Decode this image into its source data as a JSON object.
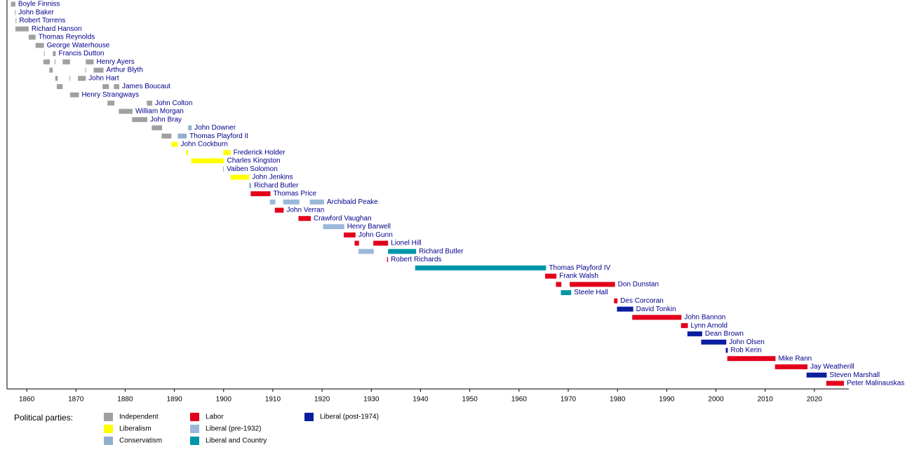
{
  "chart_data": {
    "type": "timeline",
    "xlim": [
      1856,
      2027
    ],
    "xticks": [
      1860,
      1870,
      1880,
      1890,
      1900,
      1910,
      1920,
      1930,
      1940,
      1950,
      1960,
      1970,
      1980,
      1990,
      2000,
      2010,
      2020
    ],
    "legend_title": "Political parties:",
    "parties": [
      {
        "name": "Independent",
        "color": "#a0a0a0"
      },
      {
        "name": "Liberalism",
        "color": "#ffff00"
      },
      {
        "name": "Conservatism",
        "color": "#8fb0cc"
      },
      {
        "name": "Labor",
        "color": "#e3001b"
      },
      {
        "name": "Liberal (pre-1932)",
        "color": "#9ab8d9"
      },
      {
        "name": "Liberal and Country",
        "color": "#0096aa"
      },
      {
        "name": "Liberal (post-1974)",
        "color": "#0a1e9e"
      }
    ],
    "rows": [
      {
        "name": "Boyle Finniss",
        "terms": [
          {
            "start": 1856.8,
            "end": 1857.7,
            "party": 0
          }
        ]
      },
      {
        "name": "John Baker",
        "terms": [
          {
            "start": 1857.6,
            "end": 1857.75,
            "party": 0
          }
        ]
      },
      {
        "name": "Robert Torrens",
        "terms": [
          {
            "start": 1857.75,
            "end": 1857.9,
            "party": 0
          }
        ]
      },
      {
        "name": "Richard Hanson",
        "terms": [
          {
            "start": 1857.7,
            "end": 1860.4,
            "party": 0
          }
        ]
      },
      {
        "name": "Thomas Reynolds",
        "terms": [
          {
            "start": 1860.4,
            "end": 1861.8,
            "party": 0
          }
        ]
      },
      {
        "name": "George Waterhouse",
        "terms": [
          {
            "start": 1861.8,
            "end": 1863.5,
            "party": 0
          }
        ]
      },
      {
        "name": "Francis Dutton",
        "terms": [
          {
            "start": 1863.5,
            "end": 1863.6,
            "party": 0
          },
          {
            "start": 1865.3,
            "end": 1865.9,
            "party": 0
          }
        ]
      },
      {
        "name": "Henry Ayers",
        "terms": [
          {
            "start": 1863.4,
            "end": 1864.7,
            "party": 0
          },
          {
            "start": 1865.7,
            "end": 1865.8,
            "party": 0
          },
          {
            "start": 1867.3,
            "end": 1868.8,
            "party": 0
          },
          {
            "start": 1872.0,
            "end": 1873.6,
            "party": 0
          }
        ]
      },
      {
        "name": "Arthur Blyth",
        "terms": [
          {
            "start": 1864.6,
            "end": 1865.3,
            "party": 0
          },
          {
            "start": 1871.9,
            "end": 1872.0,
            "party": 0
          },
          {
            "start": 1873.6,
            "end": 1875.6,
            "party": 0
          }
        ]
      },
      {
        "name": "John Hart",
        "terms": [
          {
            "start": 1865.8,
            "end": 1866.3,
            "party": 0
          },
          {
            "start": 1868.7,
            "end": 1868.8,
            "party": 0
          },
          {
            "start": 1870.4,
            "end": 1872.0,
            "party": 0
          }
        ]
      },
      {
        "name": "James Boucaut",
        "terms": [
          {
            "start": 1866.1,
            "end": 1867.3,
            "party": 0
          },
          {
            "start": 1875.4,
            "end": 1876.7,
            "party": 0
          },
          {
            "start": 1877.7,
            "end": 1878.8,
            "party": 0
          }
        ]
      },
      {
        "name": "Henry Strangways",
        "terms": [
          {
            "start": 1868.8,
            "end": 1870.6,
            "party": 0
          }
        ]
      },
      {
        "name": "John Colton",
        "terms": [
          {
            "start": 1876.4,
            "end": 1877.8,
            "party": 0
          },
          {
            "start": 1884.4,
            "end": 1885.5,
            "party": 0
          }
        ]
      },
      {
        "name": "William Morgan",
        "terms": [
          {
            "start": 1878.7,
            "end": 1881.5,
            "party": 0
          }
        ]
      },
      {
        "name": "John Bray",
        "terms": [
          {
            "start": 1881.4,
            "end": 1884.5,
            "party": 0
          }
        ]
      },
      {
        "name": "John Downer",
        "terms": [
          {
            "start": 1885.4,
            "end": 1887.5,
            "party": 0
          },
          {
            "start": 1892.8,
            "end": 1893.5,
            "party": 2
          }
        ]
      },
      {
        "name": "Thomas Playford II",
        "terms": [
          {
            "start": 1887.4,
            "end": 1889.4,
            "party": 0
          },
          {
            "start": 1890.7,
            "end": 1892.5,
            "party": 2
          }
        ]
      },
      {
        "name": "John Cockburn",
        "terms": [
          {
            "start": 1889.4,
            "end": 1890.7,
            "party": 1
          }
        ]
      },
      {
        "name": "Frederick Holder",
        "terms": [
          {
            "start": 1892.4,
            "end": 1892.8,
            "party": 1
          },
          {
            "start": 1899.9,
            "end": 1901.4,
            "party": 1
          }
        ]
      },
      {
        "name": "Charles Kingston",
        "terms": [
          {
            "start": 1893.4,
            "end": 1900.1,
            "party": 1
          }
        ]
      },
      {
        "name": "Vaiben Solomon",
        "terms": [
          {
            "start": 1899.9,
            "end": 1900.05,
            "party": 2
          }
        ]
      },
      {
        "name": "John Jenkins",
        "terms": [
          {
            "start": 1901.4,
            "end": 1905.2,
            "party": 1
          }
        ]
      },
      {
        "name": "Richard Butler",
        "terms": [
          {
            "start": 1905.2,
            "end": 1905.6,
            "party": 2
          }
        ]
      },
      {
        "name": "Thomas Price",
        "terms": [
          {
            "start": 1905.5,
            "end": 1909.5,
            "party": 3
          }
        ]
      },
      {
        "name": "Archibald Peake",
        "terms": [
          {
            "start": 1909.4,
            "end": 1910.5,
            "party": 4
          },
          {
            "start": 1912.1,
            "end": 1915.4,
            "party": 4
          },
          {
            "start": 1917.5,
            "end": 1920.4,
            "party": 4
          }
        ]
      },
      {
        "name": "John Verran",
        "terms": [
          {
            "start": 1910.4,
            "end": 1912.2,
            "party": 3
          }
        ]
      },
      {
        "name": "Crawford Vaughan",
        "terms": [
          {
            "start": 1915.2,
            "end": 1917.7,
            "party": 3
          }
        ]
      },
      {
        "name": "Henry Barwell",
        "terms": [
          {
            "start": 1920.2,
            "end": 1924.5,
            "party": 4
          }
        ]
      },
      {
        "name": "John Gunn",
        "terms": [
          {
            "start": 1924.4,
            "end": 1926.8,
            "party": 3
          }
        ]
      },
      {
        "name": "Lionel Hill",
        "terms": [
          {
            "start": 1926.6,
            "end": 1927.5,
            "party": 3
          },
          {
            "start": 1930.4,
            "end": 1933.4,
            "party": 3
          }
        ]
      },
      {
        "name": "Richard Butler",
        "terms": [
          {
            "start": 1927.4,
            "end": 1930.5,
            "party": 4
          },
          {
            "start": 1933.4,
            "end": 1939.1,
            "party": 5
          }
        ]
      },
      {
        "name": "Robert Richards",
        "terms": [
          {
            "start": 1933.2,
            "end": 1933.4,
            "party": 3
          }
        ]
      },
      {
        "name": "Thomas Playford IV",
        "terms": [
          {
            "start": 1938.9,
            "end": 1965.5,
            "party": 5
          }
        ]
      },
      {
        "name": "Frank Walsh",
        "terms": [
          {
            "start": 1965.3,
            "end": 1967.6,
            "party": 3
          }
        ]
      },
      {
        "name": "Don Dunstan",
        "terms": [
          {
            "start": 1967.5,
            "end": 1968.6,
            "party": 3
          },
          {
            "start": 1970.3,
            "end": 1979.5,
            "party": 3
          }
        ]
      },
      {
        "name": "Steele Hall",
        "terms": [
          {
            "start": 1968.5,
            "end": 1970.6,
            "party": 5
          }
        ]
      },
      {
        "name": "Des Corcoran",
        "terms": [
          {
            "start": 1979.3,
            "end": 1980.0,
            "party": 3
          }
        ]
      },
      {
        "name": "David Tonkin",
        "terms": [
          {
            "start": 1979.9,
            "end": 1983.2,
            "party": 6
          }
        ]
      },
      {
        "name": "John Bannon",
        "terms": [
          {
            "start": 1983.0,
            "end": 1993.0,
            "party": 3
          }
        ]
      },
      {
        "name": "Lynn Arnold",
        "terms": [
          {
            "start": 1992.9,
            "end": 1994.3,
            "party": 3
          }
        ]
      },
      {
        "name": "Dean Brown",
        "terms": [
          {
            "start": 1994.2,
            "end": 1997.2,
            "party": 6
          }
        ]
      },
      {
        "name": "John Olsen",
        "terms": [
          {
            "start": 1997.0,
            "end": 2002.1,
            "party": 6
          }
        ]
      },
      {
        "name": "Rob Kerin",
        "terms": [
          {
            "start": 2002.0,
            "end": 2002.4,
            "party": 6
          }
        ]
      },
      {
        "name": "Mike Rann",
        "terms": [
          {
            "start": 2002.3,
            "end": 2012.1,
            "party": 3
          }
        ]
      },
      {
        "name": "Jay Weatherill",
        "terms": [
          {
            "start": 2012.0,
            "end": 2018.6,
            "party": 3
          }
        ]
      },
      {
        "name": "Steven Marshall",
        "terms": [
          {
            "start": 2018.4,
            "end": 2022.5,
            "party": 6
          }
        ]
      },
      {
        "name": "Peter Malinauskas",
        "terms": [
          {
            "start": 2022.4,
            "end": 2026.0,
            "party": 3
          }
        ]
      }
    ]
  }
}
